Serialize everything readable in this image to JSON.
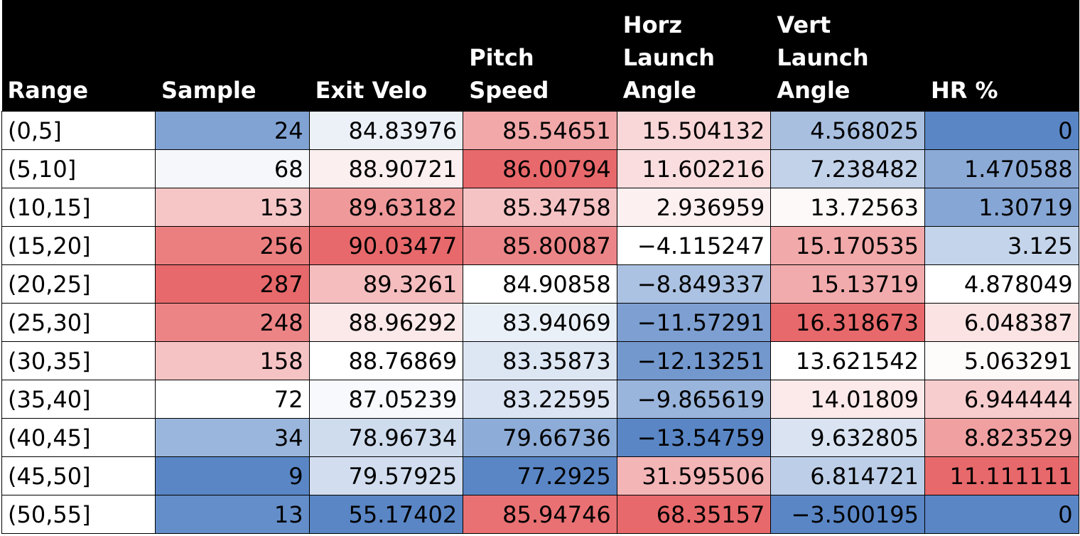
{
  "chart_data": {
    "type": "table",
    "columns": [
      "Range",
      "Sample",
      "Exit Velo",
      "Pitch Speed",
      "Horz Launch Angle",
      "Vert Launch Angle",
      "HR %"
    ],
    "rows": [
      {
        "range": "(0,5]",
        "values": [
          "24",
          "84.83976",
          "85.54651",
          "15.504132",
          "4.568025",
          "0"
        ]
      },
      {
        "range": "(5,10]",
        "values": [
          "68",
          "88.90721",
          "86.00794",
          "11.602216",
          "7.238482",
          "1.470588"
        ]
      },
      {
        "range": "(10,15]",
        "values": [
          "153",
          "89.63182",
          "85.34758",
          "2.936959",
          "13.72563",
          "1.30719"
        ]
      },
      {
        "range": "(15,20]",
        "values": [
          "256",
          "90.03477",
          "85.80087",
          "−4.115247",
          "15.170535",
          "3.125"
        ]
      },
      {
        "range": "(20,25]",
        "values": [
          "287",
          "89.3261",
          "84.90858",
          "−8.849337",
          "15.13719",
          "4.878049"
        ]
      },
      {
        "range": "(25,30]",
        "values": [
          "248",
          "88.96292",
          "83.94069",
          "−11.57291",
          "16.318673",
          "6.048387"
        ]
      },
      {
        "range": "(30,35]",
        "values": [
          "158",
          "88.76869",
          "83.35873",
          "−12.13251",
          "13.621542",
          "5.063291"
        ]
      },
      {
        "range": "(35,40]",
        "values": [
          "72",
          "87.05239",
          "83.22595",
          "−9.865619",
          "14.01809",
          "6.944444"
        ]
      },
      {
        "range": "(40,45]",
        "values": [
          "34",
          "78.96734",
          "79.66736",
          "−13.54759",
          "9.632805",
          "8.823529"
        ]
      },
      {
        "range": "(45,50]",
        "values": [
          "9",
          "79.57925",
          "77.2925",
          "31.595506",
          "6.814721",
          "11.111111"
        ]
      },
      {
        "range": "(50,55]",
        "values": [
          "13",
          "55.17402",
          "85.94746",
          "68.35157",
          "−3.500195",
          "0"
        ]
      }
    ],
    "colors": {
      "low": "#5a86c5",
      "mid": "#ffffff",
      "high": "#e8696b",
      "header_bg": "#000000",
      "header_text": "#ffffff"
    }
  }
}
